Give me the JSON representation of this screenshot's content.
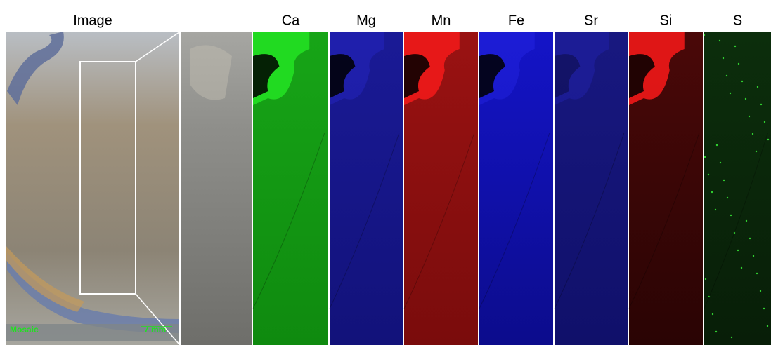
{
  "header": {
    "image_label": "Image",
    "element_labels": [
      "Ca",
      "Mg",
      "Mn",
      "Fe",
      "Sr",
      "Si",
      "S"
    ]
  },
  "overlay": {
    "mosaic": "Mosaic",
    "scale": "7 mm"
  }
}
